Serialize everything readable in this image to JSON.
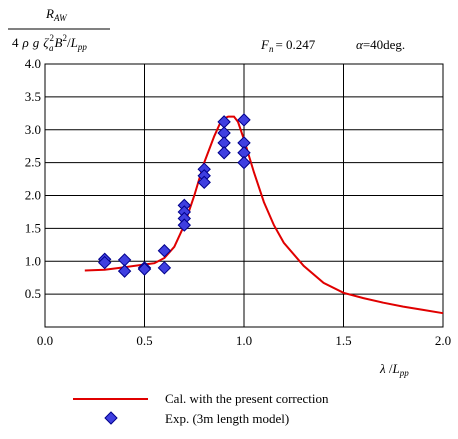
{
  "chart_data": {
    "type": "line",
    "y_title": {
      "numerator": {
        "main": "R",
        "sub": "AW"
      },
      "denominator": {
        "prefix": "4",
        "rho": "ρ",
        "g": "g",
        "zeta": "ζ",
        "sup_zeta": "2",
        "sub_zeta": "a",
        "B": "B",
        "sup_B": "2",
        "slash": "/",
        "L": "L",
        "sub_L": "pp"
      }
    },
    "params": {
      "froude_symbol": "F",
      "froude_sub": "n",
      "froude_value": "= 0.247",
      "alpha_symbol": "α",
      "alpha_value": "=40deg."
    },
    "xlabel": {
      "lambda": "λ",
      "slash": " /",
      "L": "L",
      "sub": "pp"
    },
    "xlim": [
      0.0,
      2.0
    ],
    "ylim": [
      0.0,
      4.0
    ],
    "x_ticks": [
      "0.0",
      "0.5",
      "1.0",
      "1.5",
      "2.0"
    ],
    "y_ticks": [
      "0.5",
      "1.0",
      "1.5",
      "2.0",
      "2.5",
      "3.0",
      "3.5",
      "4.0"
    ],
    "grid": true,
    "legend_position": "bottom",
    "series": [
      {
        "name": "Cal. with the present correction",
        "kind": "line",
        "color": "#e00000",
        "x": [
          0.2,
          0.3,
          0.4,
          0.5,
          0.55,
          0.6,
          0.65,
          0.7,
          0.75,
          0.8,
          0.85,
          0.88,
          0.9,
          0.92,
          0.95,
          0.97,
          1.0,
          1.05,
          1.1,
          1.15,
          1.2,
          1.3,
          1.4,
          1.5,
          1.6,
          1.7,
          1.8,
          1.9,
          2.0
        ],
        "y": [
          0.86,
          0.87,
          0.91,
          0.95,
          0.97,
          1.05,
          1.22,
          1.55,
          2.0,
          2.5,
          2.9,
          3.1,
          3.17,
          3.2,
          3.2,
          3.12,
          2.85,
          2.35,
          1.9,
          1.55,
          1.28,
          0.93,
          0.67,
          0.52,
          0.44,
          0.37,
          0.31,
          0.26,
          0.21
        ]
      },
      {
        "name": "Exp. (3m length model)",
        "kind": "marker",
        "color": "#3f3fe0",
        "x": [
          0.3,
          0.3,
          0.4,
          0.4,
          0.5,
          0.5,
          0.6,
          0.6,
          0.7,
          0.7,
          0.7,
          0.7,
          0.8,
          0.8,
          0.8,
          0.9,
          0.9,
          0.9,
          0.9,
          1.0,
          1.0,
          1.0,
          1.0
        ],
        "y": [
          1.03,
          0.98,
          1.02,
          0.85,
          0.9,
          0.88,
          1.16,
          0.9,
          1.85,
          1.75,
          1.65,
          1.55,
          2.4,
          2.3,
          2.2,
          3.12,
          2.95,
          2.8,
          2.65,
          3.15,
          2.8,
          2.65,
          2.5
        ]
      }
    ]
  }
}
